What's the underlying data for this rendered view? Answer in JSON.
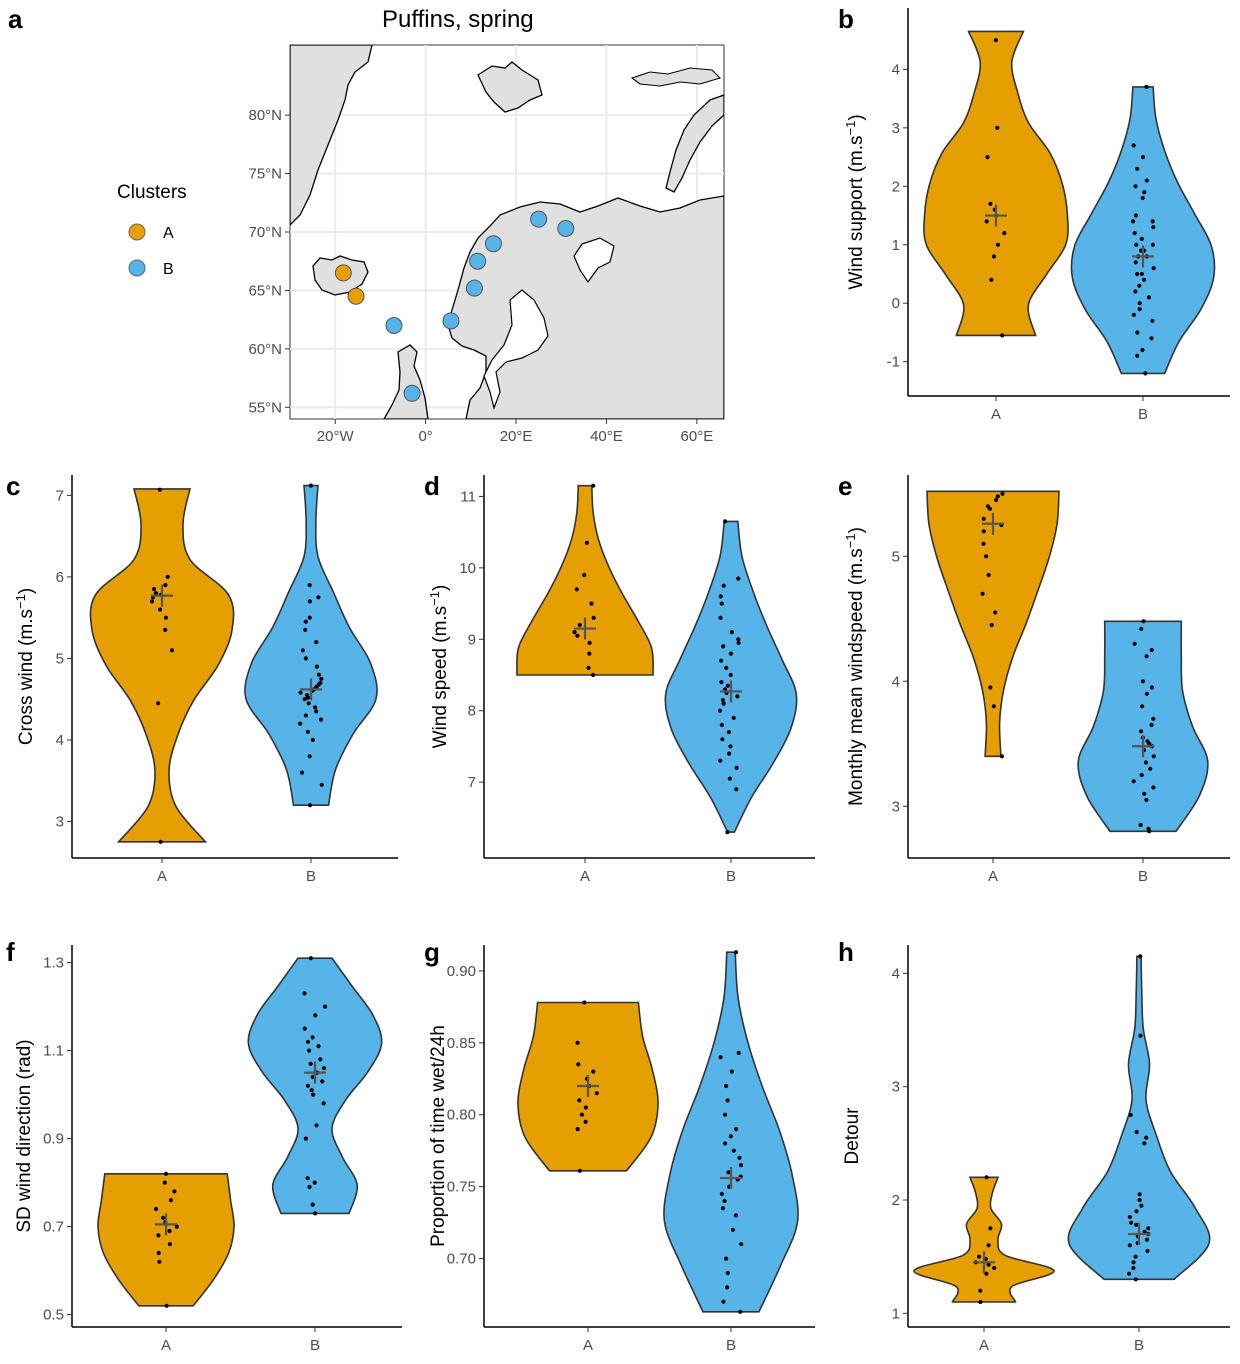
{
  "colors": {
    "A": "#E69F00",
    "B": "#56B4E9",
    "outline": "#333333",
    "land": "#e0e0e0",
    "map_grid": "#ebebeb"
  },
  "map": {
    "letter": "a",
    "title": "Puffins, spring",
    "legend_title": "Clusters",
    "legend_labels": [
      "A",
      "B"
    ],
    "lat_labels": [
      "80°N",
      "75°N",
      "70°N",
      "65°N",
      "60°N",
      "55°N"
    ],
    "lon_labels": [
      "20°W",
      "0°",
      "20°E",
      "40°E",
      "60°E"
    ],
    "xlim": [
      -30,
      66
    ],
    "ylim": [
      54,
      86
    ],
    "colonies": [
      {
        "cluster": "A",
        "lon": -18.2,
        "lat": 66.5
      },
      {
        "cluster": "A",
        "lon": -15.4,
        "lat": 64.5
      },
      {
        "cluster": "B",
        "lon": -7.0,
        "lat": 62.0
      },
      {
        "cluster": "B",
        "lon": -3.0,
        "lat": 56.2
      },
      {
        "cluster": "B",
        "lon": 5.6,
        "lat": 62.4
      },
      {
        "cluster": "B",
        "lon": 10.8,
        "lat": 65.2
      },
      {
        "cluster": "B",
        "lon": 11.5,
        "lat": 67.5
      },
      {
        "cluster": "B",
        "lon": 15.0,
        "lat": 69.0
      },
      {
        "cluster": "B",
        "lon": 25.0,
        "lat": 71.1
      },
      {
        "cluster": "B",
        "lon": 31.0,
        "lat": 70.3
      }
    ]
  },
  "chart_data": [
    {
      "panel": "b",
      "type": "violin",
      "categories": [
        "A",
        "B"
      ],
      "ylabel": "Wind support (m.s",
      "ylabel_sup": "−1",
      "ylabel_end": ")",
      "ylim": [
        -1.45,
        5.05
      ],
      "yticks": [
        -1,
        0,
        1,
        2,
        3,
        4
      ],
      "ytick_labels": [
        "-1",
        "0",
        "1",
        "2",
        "3",
        "4"
      ],
      "violins": [
        {
          "category": "A",
          "range": [
            -0.55,
            4.65
          ],
          "widths": [
            0.55,
            0.45,
            0.7,
            0.97,
            0.99,
            0.92,
            0.75,
            0.45,
            0.3,
            0.22,
            0.38
          ],
          "mean": 1.5,
          "points": [
            4.5,
            3.0,
            2.5,
            1.7,
            1.6,
            1.5,
            1.4,
            1.2,
            1.0,
            0.8,
            0.4,
            -0.55
          ]
        },
        {
          "category": "B",
          "range": [
            -1.2,
            3.7
          ],
          "widths": [
            0.3,
            0.5,
            0.8,
            0.98,
            0.95,
            0.72,
            0.48,
            0.3,
            0.18,
            0.14
          ],
          "mean": 0.8,
          "points": [
            3.7,
            2.7,
            2.5,
            2.3,
            2.1,
            2.0,
            1.9,
            1.8,
            1.5,
            1.4,
            1.4,
            1.3,
            1.2,
            1.1,
            1.0,
            1.0,
            0.9,
            0.9,
            0.8,
            0.8,
            0.7,
            0.6,
            0.5,
            0.5,
            0.4,
            0.3,
            0.2,
            0.1,
            0.0,
            -0.1,
            -0.2,
            -0.3,
            -0.5,
            -0.6,
            -0.8,
            -0.9,
            -1.2
          ]
        }
      ]
    },
    {
      "panel": "c",
      "type": "violin",
      "categories": [
        "A",
        "B"
      ],
      "ylabel": "Cross wind (m.s",
      "ylabel_sup": "−1",
      "ylabel_end": ")",
      "ylim": [
        2.65,
        7.25
      ],
      "yticks": [
        3,
        4,
        5,
        6,
        7
      ],
      "ytick_labels": [
        "3",
        "4",
        "5",
        "6",
        "7"
      ],
      "violins": [
        {
          "category": "A",
          "range": [
            2.75,
            7.08
          ],
          "widths": [
            0.62,
            0.2,
            0.1,
            0.22,
            0.45,
            0.8,
            1.0,
            0.95,
            0.4,
            0.3,
            0.4
          ],
          "mean": 5.77,
          "points": [
            7.07,
            6.0,
            5.9,
            5.85,
            5.8,
            5.78,
            5.75,
            5.7,
            5.6,
            5.5,
            5.35,
            5.1,
            4.45,
            2.75
          ]
        },
        {
          "category": "B",
          "range": [
            3.2,
            7.12
          ],
          "widths": [
            0.25,
            0.35,
            0.6,
            0.93,
            0.85,
            0.55,
            0.32,
            0.1,
            0.07,
            0.1
          ],
          "mean": 4.62,
          "points": [
            7.12,
            5.9,
            5.75,
            5.7,
            5.5,
            5.45,
            5.35,
            5.2,
            5.1,
            5.0,
            4.9,
            4.8,
            4.75,
            4.7,
            4.68,
            4.65,
            4.62,
            4.6,
            4.58,
            4.55,
            4.52,
            4.5,
            4.45,
            4.4,
            4.35,
            4.3,
            4.25,
            4.2,
            4.1,
            4.0,
            3.8,
            3.6,
            3.45,
            3.2
          ]
        }
      ]
    },
    {
      "panel": "d",
      "type": "violin",
      "categories": [
        "A",
        "B"
      ],
      "ylabel": "Wind speed (m.s",
      "ylabel_sup": "−1",
      "ylabel_end": ")",
      "ylim": [
        6.05,
        11.3
      ],
      "yticks": [
        7,
        8,
        9,
        10,
        11
      ],
      "ytick_labels": [
        "7",
        "8",
        "9",
        "10",
        "11"
      ],
      "violins": [
        {
          "category": "A",
          "range": [
            8.5,
            11.15
          ],
          "widths": [
            1.0,
            0.98,
            0.78,
            0.55,
            0.35,
            0.2,
            0.12,
            0.1
          ],
          "mean": 9.15,
          "points": [
            11.15,
            10.35,
            9.9,
            9.7,
            9.5,
            9.3,
            9.2,
            9.1,
            9.05,
            8.95,
            8.8,
            8.6,
            8.5
          ]
        },
        {
          "category": "B",
          "range": [
            6.3,
            10.65
          ],
          "widths": [
            0.05,
            0.3,
            0.62,
            0.88,
            0.96,
            0.75,
            0.52,
            0.32,
            0.16,
            0.1
          ],
          "mean": 8.27,
          "points": [
            10.65,
            9.85,
            9.75,
            9.6,
            9.5,
            9.3,
            9.1,
            9.0,
            8.95,
            8.9,
            8.8,
            8.7,
            8.6,
            8.5,
            8.4,
            8.35,
            8.3,
            8.25,
            8.2,
            8.15,
            8.1,
            8.0,
            7.9,
            7.8,
            7.7,
            7.6,
            7.5,
            7.4,
            7.3,
            7.2,
            7.05,
            6.9,
            6.3
          ]
        }
      ]
    },
    {
      "panel": "e",
      "type": "violin",
      "categories": [
        "A",
        "B"
      ],
      "ylabel": "Monthly mean windspeed (m.s",
      "ylabel_sup": "−1",
      "ylabel_end": ")",
      "ylim": [
        2.65,
        5.65
      ],
      "yticks": [
        3,
        4,
        5
      ],
      "ytick_labels": [
        "3",
        "4",
        "5"
      ],
      "violins": [
        {
          "category": "A",
          "range": [
            3.4,
            5.52
          ],
          "widths": [
            0.12,
            0.1,
            0.16,
            0.3,
            0.5,
            0.68,
            0.85,
            0.97,
            1.0
          ],
          "mean": 5.26,
          "points": [
            5.5,
            5.48,
            5.45,
            5.4,
            5.38,
            5.3,
            5.25,
            5.2,
            5.1,
            5.0,
            4.85,
            4.7,
            4.55,
            4.45,
            3.95,
            3.8,
            3.4
          ]
        },
        {
          "category": "B",
          "range": [
            2.8,
            4.48
          ],
          "widths": [
            0.5,
            0.85,
            0.98,
            0.75,
            0.6,
            0.58,
            0.58
          ],
          "mean": 3.48,
          "points": [
            4.48,
            4.42,
            4.3,
            4.25,
            4.2,
            4.0,
            3.95,
            3.9,
            3.8,
            3.7,
            3.65,
            3.6,
            3.55,
            3.52,
            3.5,
            3.48,
            3.45,
            3.4,
            3.35,
            3.3,
            3.25,
            3.2,
            3.15,
            3.1,
            3.05,
            2.85,
            2.82,
            2.8
          ]
        }
      ]
    },
    {
      "panel": "f",
      "type": "violin",
      "categories": [
        "A",
        "B"
      ],
      "ylabel": "SD wind direction (rad)",
      "ylabel_sup": "",
      "ylabel_end": "",
      "ylim": [
        0.49,
        1.34
      ],
      "yticks": [
        0.5,
        0.7,
        0.9,
        1.1,
        1.3
      ],
      "ytick_labels": [
        "0.5",
        "0.7",
        "0.9",
        "1.1",
        "1.3"
      ],
      "violins": [
        {
          "category": "A",
          "range": [
            0.52,
            0.82
          ],
          "widths": [
            0.4,
            0.7,
            0.92,
            1.0,
            0.95,
            0.9
          ],
          "mean": 0.705,
          "points": [
            0.82,
            0.8,
            0.78,
            0.76,
            0.74,
            0.72,
            0.71,
            0.7,
            0.69,
            0.68,
            0.66,
            0.64,
            0.62,
            0.52
          ]
        },
        {
          "category": "B",
          "range": [
            0.73,
            1.31
          ],
          "widths": [
            0.5,
            0.62,
            0.4,
            0.25,
            0.45,
            0.78,
            0.98,
            0.85,
            0.55,
            0.25
          ],
          "mean": 1.05,
          "points": [
            1.31,
            1.23,
            1.2,
            1.18,
            1.15,
            1.13,
            1.12,
            1.11,
            1.1,
            1.08,
            1.07,
            1.06,
            1.05,
            1.04,
            1.03,
            1.02,
            1.01,
            1.0,
            0.98,
            0.93,
            0.9,
            0.81,
            0.8,
            0.79,
            0.75,
            0.73
          ]
        }
      ]
    },
    {
      "panel": "g",
      "type": "violin",
      "categories": [
        "A",
        "B"
      ],
      "ylabel": "Proportion of time wet/24h",
      "ylabel_sup": "",
      "ylabel_end": "",
      "ylim": [
        0.658,
        0.918
      ],
      "yticks": [
        0.7,
        0.75,
        0.8,
        0.85,
        0.9
      ],
      "ytick_labels": [
        "0.70",
        "0.75",
        "0.80",
        "0.85",
        "0.90"
      ],
      "violins": [
        {
          "category": "A",
          "range": [
            0.761,
            0.878
          ],
          "widths": [
            0.55,
            0.9,
            1.0,
            0.92,
            0.78,
            0.72
          ],
          "mean": 0.82,
          "points": [
            0.878,
            0.85,
            0.835,
            0.83,
            0.825,
            0.82,
            0.815,
            0.81,
            0.805,
            0.8,
            0.795,
            0.79,
            0.761
          ]
        },
        {
          "category": "B",
          "range": [
            0.663,
            0.913
          ],
          "widths": [
            0.4,
            0.7,
            0.95,
            0.88,
            0.7,
            0.45,
            0.24,
            0.1,
            0.06
          ],
          "mean": 0.756,
          "points": [
            0.913,
            0.843,
            0.84,
            0.83,
            0.82,
            0.81,
            0.8,
            0.79,
            0.785,
            0.78,
            0.775,
            0.77,
            0.765,
            0.76,
            0.757,
            0.755,
            0.75,
            0.745,
            0.74,
            0.735,
            0.73,
            0.72,
            0.71,
            0.7,
            0.69,
            0.68,
            0.67,
            0.663
          ]
        }
      ]
    },
    {
      "panel": "h",
      "type": "violin",
      "categories": [
        "A",
        "B"
      ],
      "ylabel": "Detour",
      "ylabel_sup": "",
      "ylabel_end": "",
      "ylim": [
        0.95,
        4.25
      ],
      "yticks": [
        1,
        2,
        3,
        4
      ],
      "ytick_labels": [
        "1",
        "2",
        "3",
        "4"
      ],
      "violins": [
        {
          "category": "A",
          "range": [
            1.1,
            2.2
          ],
          "widths": [
            0.45,
            0.4,
            1.0,
            0.3,
            0.2,
            0.25,
            0.1,
            0.12,
            0.2
          ],
          "mean": 1.45,
          "points": [
            2.2,
            1.75,
            1.6,
            1.5,
            1.48,
            1.45,
            1.43,
            1.4,
            1.35,
            1.2,
            1.1
          ]
        },
        {
          "category": "B",
          "range": [
            1.3,
            4.15
          ],
          "widths": [
            0.5,
            1.0,
            0.8,
            0.45,
            0.25,
            0.1,
            0.15,
            0.06,
            0.04,
            0.03
          ],
          "mean": 1.7,
          "points": [
            4.15,
            3.45,
            2.75,
            2.6,
            2.55,
            2.5,
            2.05,
            2.0,
            1.95,
            1.9,
            1.85,
            1.8,
            1.78,
            1.75,
            1.72,
            1.7,
            1.68,
            1.65,
            1.62,
            1.6,
            1.55,
            1.5,
            1.45,
            1.4,
            1.35,
            1.3
          ]
        }
      ]
    }
  ]
}
